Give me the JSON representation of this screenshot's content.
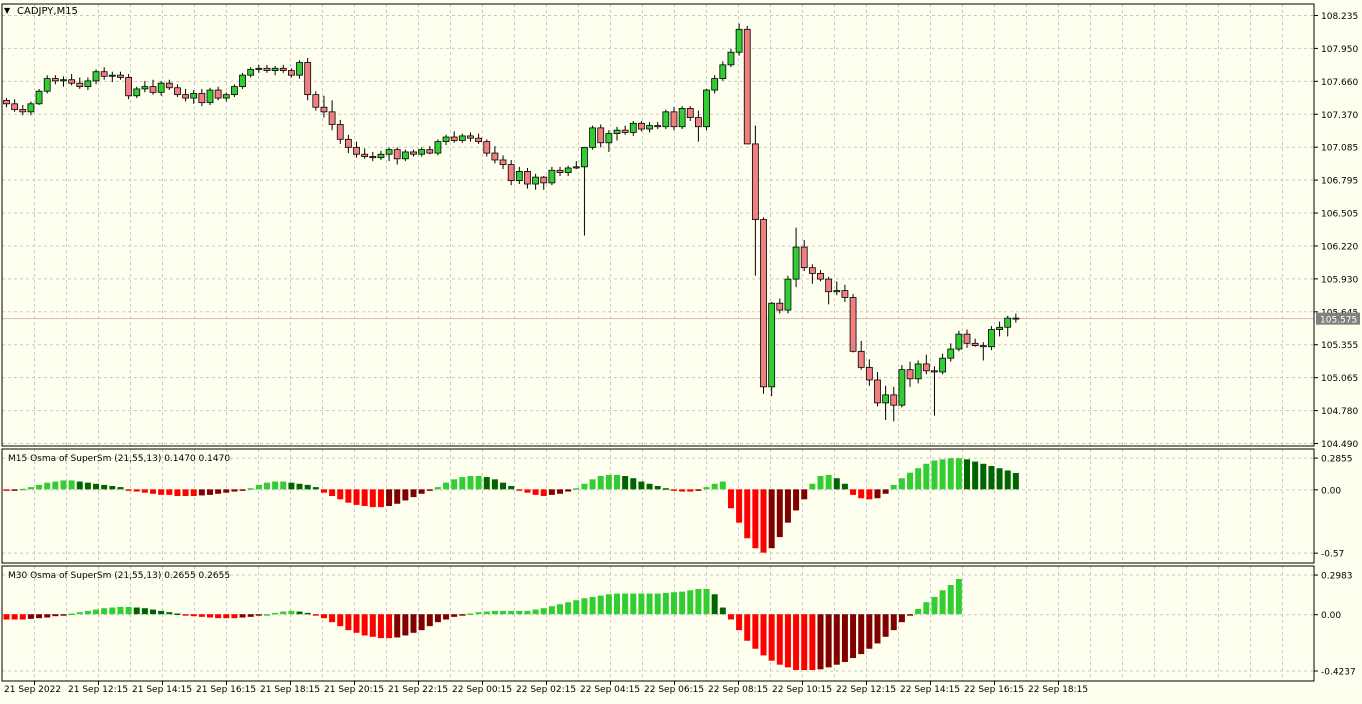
{
  "window": {
    "symbol_label": "CADJPY,M15",
    "menu_icon": "triangle-down-icon"
  },
  "colors": {
    "background": "#fffff0",
    "grid": "#c8c8c8",
    "bull": "#32cd32",
    "bear": "#f08080",
    "candle_outline": "#000000",
    "osc_bright_green": "#32cd32",
    "osc_dark_green": "#006400",
    "osc_bright_red": "#ff0000",
    "osc_dark_red": "#800000",
    "price_tag_bg": "#808080",
    "price_tag_text": "#ffffff"
  },
  "chart_data": [
    {
      "type": "candlestick",
      "title": "CADJPY,M15",
      "ylim": [
        104.49,
        108.225
      ],
      "y_ticks": [
        "108.235",
        "107.950",
        "107.660",
        "107.370",
        "107.085",
        "106.795",
        "106.505",
        "106.220",
        "105.930",
        "105.645",
        "105.355",
        "105.065",
        "104.780",
        "104.490"
      ],
      "current_price": "105.575",
      "current_value": 105.575,
      "x_labels": [
        "21 Sep 2022",
        "21 Sep 12:15",
        "21 Sep 14:15",
        "21 Sep 16:15",
        "21 Sep 18:15",
        "21 Sep 20:15",
        "21 Sep 22:15",
        "22 Sep 00:15",
        "22 Sep 02:15",
        "22 Sep 04:15",
        "22 Sep 06:15",
        "22 Sep 08:15",
        "22 Sep 10:15",
        "22 Sep 12:15",
        "22 Sep 14:15",
        "22 Sep 16:15",
        "22 Sep 18:15"
      ],
      "candles": [
        [
          107.48,
          107.5,
          107.42,
          107.45
        ],
        [
          107.45,
          107.49,
          107.38,
          107.4
        ],
        [
          107.4,
          107.44,
          107.35,
          107.38
        ],
        [
          107.38,
          107.47,
          107.35,
          107.45
        ],
        [
          107.45,
          107.58,
          107.44,
          107.56
        ],
        [
          107.56,
          107.7,
          107.54,
          107.67
        ],
        [
          107.67,
          107.7,
          107.62,
          107.65
        ],
        [
          107.65,
          107.69,
          107.6,
          107.66
        ],
        [
          107.66,
          107.71,
          107.61,
          107.63
        ],
        [
          107.63,
          107.68,
          107.58,
          107.6
        ],
        [
          107.6,
          107.68,
          107.57,
          107.65
        ],
        [
          107.65,
          107.75,
          107.62,
          107.73
        ],
        [
          107.73,
          107.77,
          107.66,
          107.69
        ],
        [
          107.69,
          107.73,
          107.64,
          107.7
        ],
        [
          107.7,
          107.73,
          107.66,
          107.68
        ],
        [
          107.68,
          107.71,
          107.49,
          107.52
        ],
        [
          107.52,
          107.6,
          107.5,
          107.58
        ],
        [
          107.58,
          107.65,
          107.55,
          107.6
        ],
        [
          107.6,
          107.66,
          107.53,
          107.55
        ],
        [
          107.55,
          107.65,
          107.52,
          107.63
        ],
        [
          107.63,
          107.66,
          107.57,
          107.59
        ],
        [
          107.59,
          107.62,
          107.51,
          107.53
        ],
        [
          107.53,
          107.58,
          107.47,
          107.5
        ],
        [
          107.5,
          107.57,
          107.45,
          107.54
        ],
        [
          107.54,
          107.58,
          107.43,
          107.46
        ],
        [
          107.46,
          107.59,
          107.44,
          107.57
        ],
        [
          107.57,
          107.6,
          107.48,
          107.5
        ],
        [
          107.5,
          107.55,
          107.47,
          107.53
        ],
        [
          107.53,
          107.62,
          107.51,
          107.6
        ],
        [
          107.6,
          107.72,
          107.58,
          107.7
        ],
        [
          107.7,
          107.77,
          107.68,
          107.75
        ],
        [
          107.75,
          107.79,
          107.72,
          107.76
        ],
        [
          107.76,
          107.79,
          107.72,
          107.74
        ],
        [
          107.74,
          107.78,
          107.7,
          107.76
        ],
        [
          107.76,
          107.79,
          107.72,
          107.74
        ],
        [
          107.74,
          107.76,
          107.68,
          107.7
        ],
        [
          107.7,
          107.83,
          107.67,
          107.81
        ],
        [
          107.81,
          107.85,
          107.48,
          107.53
        ],
        [
          107.53,
          107.56,
          107.39,
          107.42
        ],
        [
          107.42,
          107.52,
          107.33,
          107.38
        ],
        [
          107.38,
          107.48,
          107.22,
          107.27
        ],
        [
          107.27,
          107.31,
          107.1,
          107.14
        ],
        [
          107.14,
          107.18,
          107.02,
          107.07
        ],
        [
          107.07,
          107.12,
          106.98,
          107.01
        ],
        [
          107.01,
          107.06,
          106.97,
          106.99
        ],
        [
          106.99,
          107.03,
          106.95,
          106.98
        ],
        [
          106.98,
          107.04,
          106.96,
          107.01
        ],
        [
          107.01,
          107.07,
          106.95,
          107.05
        ],
        [
          107.05,
          107.07,
          106.92,
          106.97
        ],
        [
          106.97,
          107.05,
          106.95,
          107.03
        ],
        [
          107.03,
          107.05,
          106.99,
          107.01
        ],
        [
          107.01,
          107.07,
          106.99,
          107.05
        ],
        [
          107.05,
          107.08,
          107.01,
          107.02
        ],
        [
          107.02,
          107.14,
          107.0,
          107.12
        ],
        [
          107.12,
          107.18,
          107.09,
          107.16
        ],
        [
          107.16,
          107.21,
          107.11,
          107.13
        ],
        [
          107.13,
          107.19,
          107.11,
          107.17
        ],
        [
          107.17,
          107.2,
          107.12,
          107.15
        ],
        [
          107.15,
          107.19,
          107.1,
          107.12
        ],
        [
          107.12,
          107.14,
          106.99,
          107.02
        ],
        [
          107.02,
          107.08,
          106.93,
          106.96
        ],
        [
          106.96,
          107.0,
          106.88,
          106.92
        ],
        [
          106.92,
          106.96,
          106.74,
          106.78
        ],
        [
          106.78,
          106.9,
          106.75,
          106.86
        ],
        [
          106.86,
          106.89,
          106.71,
          106.75
        ],
        [
          106.75,
          106.84,
          106.7,
          106.81
        ],
        [
          106.81,
          106.82,
          106.7,
          106.76
        ],
        [
          106.76,
          106.9,
          106.74,
          106.87
        ],
        [
          106.87,
          106.9,
          106.82,
          106.85
        ],
        [
          106.85,
          106.91,
          106.82,
          106.89
        ],
        [
          106.89,
          106.95,
          106.88,
          106.9
        ],
        [
          106.9,
          107.07,
          106.3,
          107.07
        ],
        [
          107.07,
          107.26,
          107.05,
          107.24
        ],
        [
          107.24,
          107.27,
          107.07,
          107.11
        ],
        [
          107.11,
          107.22,
          107.03,
          107.19
        ],
        [
          107.19,
          107.25,
          107.13,
          107.22
        ],
        [
          107.22,
          107.26,
          107.18,
          107.2
        ],
        [
          107.2,
          107.3,
          107.17,
          107.28
        ],
        [
          107.28,
          107.3,
          107.21,
          107.23
        ],
        [
          107.23,
          107.29,
          107.2,
          107.26
        ],
        [
          107.26,
          107.29,
          107.23,
          107.25
        ],
        [
          107.25,
          107.4,
          107.23,
          107.38
        ],
        [
          107.38,
          107.42,
          107.22,
          107.25
        ],
        [
          107.25,
          107.43,
          107.23,
          107.41
        ],
        [
          107.41,
          107.43,
          107.3,
          107.33
        ],
        [
          107.33,
          107.39,
          107.12,
          107.25
        ],
        [
          107.25,
          107.58,
          107.22,
          107.57
        ],
        [
          107.57,
          107.7,
          107.54,
          107.67
        ],
        [
          107.67,
          107.82,
          107.65,
          107.79
        ],
        [
          107.79,
          107.93,
          107.77,
          107.9
        ],
        [
          107.9,
          108.15,
          107.87,
          108.1
        ],
        [
          108.1,
          108.13,
          107.1,
          107.1
        ],
        [
          107.1,
          107.26,
          105.95,
          106.44
        ],
        [
          106.44,
          106.46,
          104.92,
          104.98
        ],
        [
          104.98,
          105.72,
          104.9,
          105.71
        ],
        [
          105.71,
          105.75,
          105.62,
          105.65
        ],
        [
          105.65,
          105.95,
          105.62,
          105.92
        ],
        [
          105.92,
          106.37,
          105.85,
          106.2
        ],
        [
          106.2,
          106.26,
          105.99,
          106.02
        ],
        [
          106.02,
          106.05,
          105.88,
          105.97
        ],
        [
          105.97,
          106.0,
          105.9,
          105.92
        ],
        [
          105.92,
          105.94,
          105.7,
          105.81
        ],
        [
          105.81,
          105.9,
          105.78,
          105.82
        ],
        [
          105.82,
          105.87,
          105.72,
          105.76
        ],
        [
          105.76,
          105.79,
          105.28,
          105.29
        ],
        [
          105.29,
          105.38,
          105.13,
          105.15
        ],
        [
          105.15,
          105.22,
          104.99,
          105.04
        ],
        [
          105.04,
          105.11,
          104.81,
          104.84
        ],
        [
          104.84,
          104.99,
          104.69,
          104.91
        ],
        [
          104.91,
          104.98,
          104.68,
          104.82
        ],
        [
          104.82,
          105.17,
          104.8,
          105.13
        ],
        [
          105.13,
          105.2,
          104.98,
          105.05
        ],
        [
          105.05,
          105.21,
          105.01,
          105.18
        ],
        [
          105.18,
          105.26,
          105.09,
          105.12
        ],
        [
          105.12,
          105.16,
          104.73,
          105.11
        ],
        [
          105.11,
          105.27,
          105.09,
          105.23
        ],
        [
          105.23,
          105.36,
          105.2,
          105.31
        ],
        [
          105.31,
          105.47,
          105.29,
          105.44
        ],
        [
          105.44,
          105.48,
          105.32,
          105.36
        ],
        [
          105.36,
          105.4,
          105.33,
          105.34
        ],
        [
          105.34,
          105.37,
          105.21,
          105.33
        ],
        [
          105.33,
          105.51,
          105.3,
          105.48
        ],
        [
          105.48,
          105.55,
          105.42,
          105.5
        ],
        [
          105.5,
          105.6,
          105.42,
          105.58
        ],
        [
          105.58,
          105.62,
          105.54,
          105.575
        ]
      ]
    },
    {
      "type": "bar",
      "title": "M15 Osma of SuperSm (21,55,13) 0.1470 0.1470",
      "ylim": [
        -0.6,
        0.3
      ],
      "y_ticks": [
        "0.2855",
        "0.00",
        "-0.57"
      ],
      "values": [
        -0.01,
        -0.005,
        0.005,
        0.02,
        0.04,
        0.06,
        0.07,
        0.08,
        0.08,
        0.07,
        0.06,
        0.05,
        0.04,
        0.03,
        0.02,
        -0.005,
        -0.02,
        -0.03,
        -0.04,
        -0.05,
        -0.05,
        -0.06,
        -0.06,
        -0.06,
        -0.055,
        -0.05,
        -0.04,
        -0.03,
        -0.02,
        -0.01,
        0.01,
        0.04,
        0.06,
        0.07,
        0.07,
        0.06,
        0.05,
        0.04,
        0.02,
        -0.03,
        -0.06,
        -0.09,
        -0.12,
        -0.14,
        -0.15,
        -0.16,
        -0.16,
        -0.15,
        -0.13,
        -0.1,
        -0.07,
        -0.04,
        -0.01,
        0.02,
        0.06,
        0.09,
        0.11,
        0.12,
        0.12,
        0.11,
        0.09,
        0.06,
        0.03,
        -0.01,
        -0.03,
        -0.05,
        -0.06,
        -0.05,
        -0.04,
        -0.02,
        0.01,
        0.05,
        0.09,
        0.12,
        0.13,
        0.13,
        0.12,
        0.1,
        0.07,
        0.05,
        0.03,
        0.01,
        -0.01,
        -0.02,
        -0.02,
        -0.01,
        0.02,
        0.05,
        0.07,
        -0.17,
        -0.3,
        -0.44,
        -0.53,
        -0.57,
        -0.53,
        -0.43,
        -0.3,
        -0.19,
        -0.09,
        0.05,
        0.12,
        0.13,
        0.1,
        0.05,
        -0.05,
        -0.08,
        -0.09,
        -0.08,
        -0.04,
        0.04,
        0.1,
        0.15,
        0.19,
        0.23,
        0.26,
        0.27,
        0.28,
        0.28,
        0.27,
        0.25,
        0.23,
        0.21,
        0.19,
        0.17,
        0.147
      ]
    },
    {
      "type": "bar",
      "title": "M30 Osma of SuperSm (21,55,13) 0.2655 0.2655",
      "ylim": [
        -0.45,
        0.31
      ],
      "y_ticks": [
        "0.2983",
        "0.00",
        "-0.4237"
      ],
      "values": [
        -0.04,
        -0.04,
        -0.04,
        -0.035,
        -0.03,
        -0.025,
        -0.015,
        -0.005,
        0.005,
        0.015,
        0.025,
        0.035,
        0.045,
        0.05,
        0.055,
        0.055,
        0.05,
        0.045,
        0.035,
        0.025,
        0.015,
        0.005,
        -0.005,
        -0.015,
        -0.02,
        -0.025,
        -0.03,
        -0.03,
        -0.03,
        -0.025,
        -0.02,
        -0.01,
        0.0,
        0.01,
        0.02,
        0.025,
        0.02,
        0.01,
        -0.01,
        -0.03,
        -0.06,
        -0.09,
        -0.12,
        -0.14,
        -0.16,
        -0.17,
        -0.18,
        -0.18,
        -0.175,
        -0.16,
        -0.14,
        -0.12,
        -0.09,
        -0.06,
        -0.04,
        -0.02,
        -0.01,
        0.005,
        0.015,
        0.02,
        0.025,
        0.025,
        0.025,
        0.025,
        0.025,
        0.035,
        0.045,
        0.06,
        0.075,
        0.09,
        0.105,
        0.12,
        0.13,
        0.14,
        0.15,
        0.155,
        0.155,
        0.155,
        0.155,
        0.155,
        0.155,
        0.16,
        0.165,
        0.17,
        0.18,
        0.19,
        0.19,
        0.15,
        0.05,
        -0.04,
        -0.12,
        -0.2,
        -0.26,
        -0.31,
        -0.35,
        -0.38,
        -0.4,
        -0.42,
        -0.42,
        -0.42,
        -0.415,
        -0.4,
        -0.38,
        -0.36,
        -0.33,
        -0.3,
        -0.26,
        -0.22,
        -0.17,
        -0.12,
        -0.06,
        -0.01,
        0.04,
        0.09,
        0.13,
        0.18,
        0.22,
        0.265
      ]
    }
  ]
}
